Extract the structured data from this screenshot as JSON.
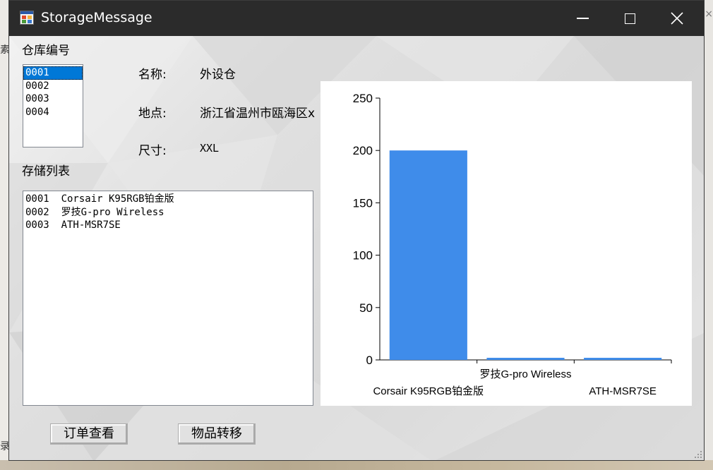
{
  "window": {
    "title": "StorageMessage"
  },
  "warehouse": {
    "heading": "仓库编号",
    "ids": [
      "0001",
      "0002",
      "0003",
      "0004"
    ],
    "selected_index": 0
  },
  "details": {
    "name_label": "名称:",
    "name_value": "外设仓",
    "location_label": "地点:",
    "location_value": "浙江省温州市瓯海区x",
    "size_label": "尺寸:",
    "size_value": "XXL"
  },
  "storage": {
    "heading": "存储列表",
    "items": [
      "0001  Corsair K95RGB铂金版",
      "0002  罗技G-pro Wireless",
      "0003  ATH-MSR7SE"
    ]
  },
  "buttons": {
    "orders": "订单查看",
    "transfer": "物品转移"
  },
  "colors": {
    "bar": "#3f8cea",
    "titlebar": "#2b2b2b",
    "selection": "#0078d7"
  },
  "chart_data": {
    "type": "bar",
    "categories": [
      "Corsair K95RGB铂金版",
      "罗技G-pro Wireless",
      "ATH-MSR7SE"
    ],
    "values": [
      200,
      2,
      2
    ],
    "ylim": [
      0,
      250
    ],
    "yticks": [
      0,
      50,
      100,
      150,
      200,
      250
    ],
    "xlabel": "",
    "ylabel": "",
    "title": ""
  }
}
